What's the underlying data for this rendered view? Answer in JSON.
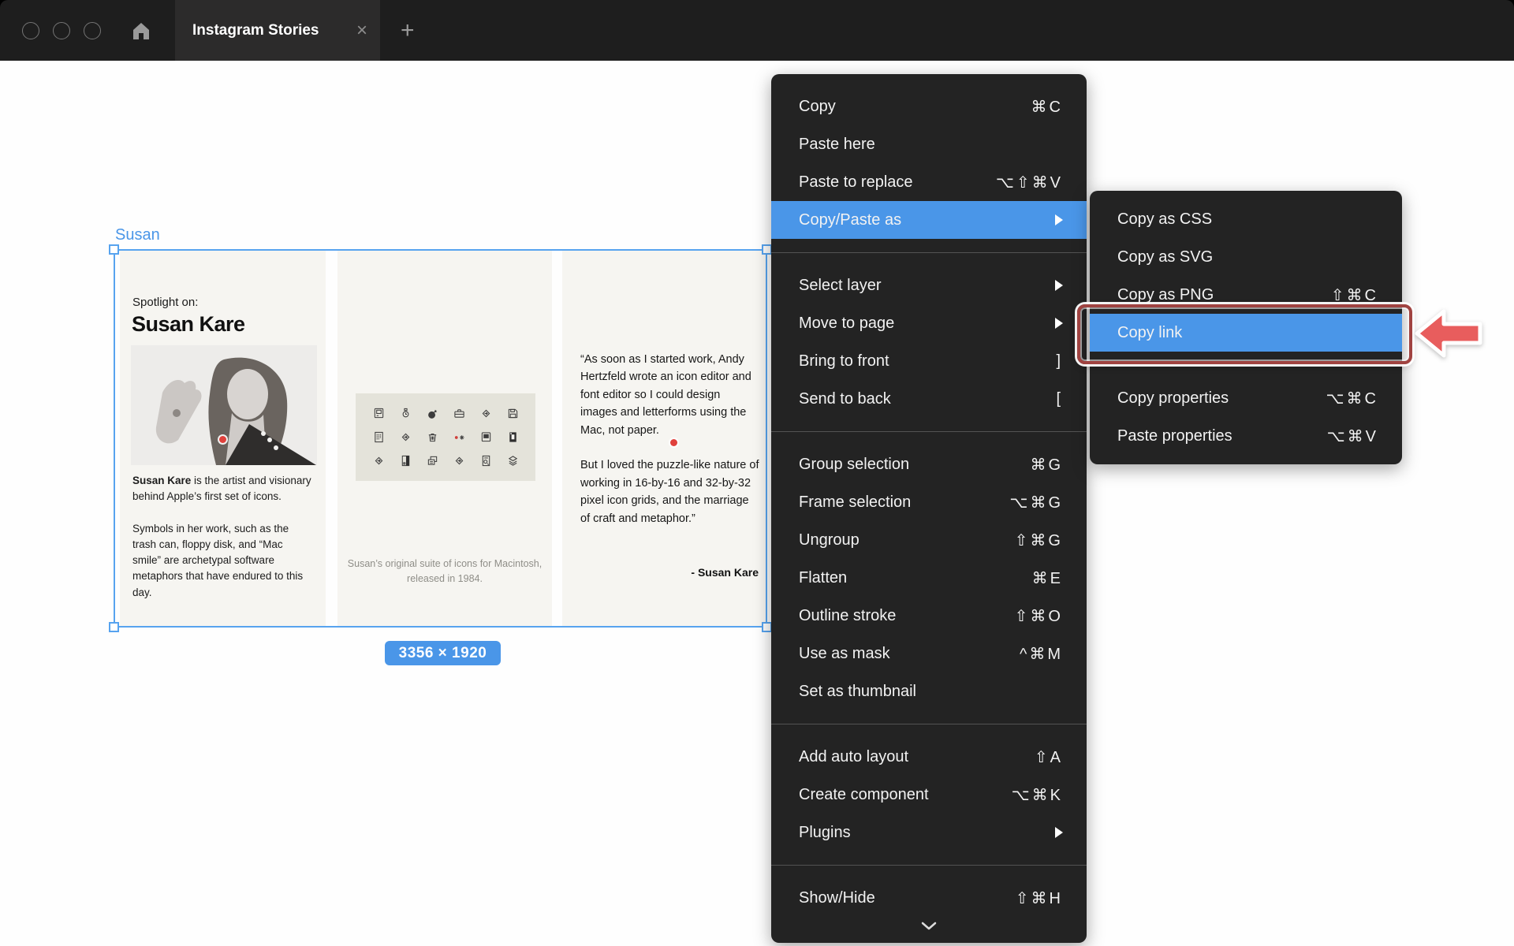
{
  "topbar": {
    "tab_title": "Instagram Stories",
    "close_label": "×",
    "new_tab_label": "+"
  },
  "canvas": {
    "frame_label": "Susan",
    "dimensions_badge": "3356 × 1920",
    "panel1": {
      "eyebrow": "Spotlight on:",
      "title": "Susan Kare",
      "body1_bold": "Susan Kare",
      "body1_rest": " is the artist and visionary behind Apple’s first set of icons.",
      "body2": "Symbols in her work, such as the trash can, floppy disk, and “Mac smile” are archetypal software metaphors that have endured to this day."
    },
    "panel2": {
      "icons": [
        "mac-classic",
        "watch",
        "bomb",
        "briefcase",
        "floppy-arrow",
        "floppy-disk",
        "document-grid",
        "floppy-arrow",
        "trash-can",
        "dot-and-command",
        "mac-screen",
        "disk-door",
        "floppy-arrow",
        "page-dark",
        "copy-stack",
        "floppy-arrow",
        "page-badge",
        "layers"
      ],
      "caption": "Susan’s original suite of icons for Macintosh, released in 1984."
    },
    "panel3": {
      "quote1": "“As soon as I started work, Andy Hertzfeld wrote an icon editor and font editor so I could design images and letterforms using the Mac, not paper.",
      "quote2": "But I loved the puzzle-like nature of working in 16-by-16 and 32-by-32 pixel icon grids, and the marriage of craft and metaphor.”",
      "attribution": "- Susan Kare"
    }
  },
  "context_menu": {
    "sections": [
      {
        "items": [
          {
            "label": "Copy",
            "shortcut": "⌘C"
          },
          {
            "label": "Paste here"
          },
          {
            "label": "Paste to replace",
            "shortcut": "⌥⇧⌘V"
          },
          {
            "label": "Copy/Paste as",
            "submenu": true,
            "highlighted": true
          }
        ]
      },
      {
        "items": [
          {
            "label": "Select layer",
            "submenu": true
          },
          {
            "label": "Move to page",
            "submenu": true
          },
          {
            "label": "Bring to front",
            "shortcut": "]"
          },
          {
            "label": "Send to back",
            "shortcut": "["
          }
        ]
      },
      {
        "items": [
          {
            "label": "Group selection",
            "shortcut": "⌘G"
          },
          {
            "label": "Frame selection",
            "shortcut": "⌥⌘G"
          },
          {
            "label": "Ungroup",
            "shortcut": "⇧⌘G"
          },
          {
            "label": "Flatten",
            "shortcut": "⌘E"
          },
          {
            "label": "Outline stroke",
            "shortcut": "⇧⌘O"
          },
          {
            "label": "Use as mask",
            "shortcut": "^⌘M"
          },
          {
            "label": "Set as thumbnail"
          }
        ]
      },
      {
        "items": [
          {
            "label": "Add auto layout",
            "shortcut": "⇧A"
          },
          {
            "label": "Create component",
            "shortcut": "⌥⌘K"
          },
          {
            "label": "Plugins",
            "submenu": true
          }
        ]
      },
      {
        "items": [
          {
            "label": "Show/Hide",
            "shortcut": "⇧⌘H"
          }
        ]
      }
    ],
    "has_scroll_indicator": true
  },
  "submenu": {
    "sections": [
      {
        "items": [
          {
            "label": "Copy as CSS"
          },
          {
            "label": "Copy as SVG"
          },
          {
            "label": "Copy as PNG",
            "shortcut": "⇧⌘C"
          },
          {
            "label": "Copy link",
            "highlighted": true,
            "annotated": true
          }
        ]
      },
      {
        "items": [
          {
            "label": "Copy properties",
            "shortcut": "⌥⌘C"
          },
          {
            "label": "Paste properties",
            "shortcut": "⌥⌘V"
          }
        ]
      }
    ]
  },
  "colors": {
    "accent_blue": "#4a96e8",
    "selection_blue": "#57a3ef",
    "menu_bg": "#232323",
    "annotation_red": "#a04341",
    "arrow_red": "#e85d5d",
    "panel_bg": "#f6f5f1",
    "icon_box_bg": "#e4e3da"
  }
}
